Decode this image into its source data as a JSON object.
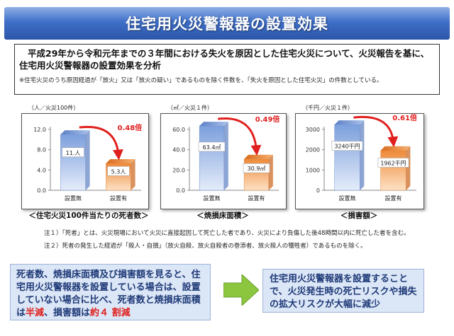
{
  "header": {
    "title": "住宅用火災警報器の設置効果"
  },
  "intro": {
    "text": "平成29年から令和元年までの３年間における失火を原因とした住宅火災について、火災報告を基に、住宅用火災警報器の設置効果を分析",
    "note": "※住宅火災のうち原因経過が「放火」又は「放火の疑い」であるものを除く件数を、「失火を原因とした住宅火災」の件数としている。"
  },
  "chart_data": [
    {
      "type": "bar",
      "unit_label": "（人／火災100件）",
      "categories": [
        "設置無",
        "設置有"
      ],
      "values": [
        11,
        5.3
      ],
      "data_labels": [
        "11.人",
        "5.3人"
      ],
      "ratio_label": "0.48倍",
      "yticks": [
        "0.0",
        "4.0",
        "8.0",
        "12.0"
      ],
      "ylim": [
        0,
        12
      ],
      "caption": "＜住宅火災100件当たりの死者数＞"
    },
    {
      "type": "bar",
      "unit_label": "（㎡／火災１件）",
      "categories": [
        "設置無",
        "設置有"
      ],
      "values": [
        63.4,
        30.9
      ],
      "data_labels": [
        "63.4㎡",
        "30.9㎡"
      ],
      "ratio_label": "0.49倍",
      "yticks": [
        "0.0",
        "20.0",
        "40.0",
        "60.0"
      ],
      "ylim": [
        0,
        60
      ],
      "caption": "＜焼損床面積＞"
    },
    {
      "type": "bar",
      "unit_label": "（千円／火災１件）",
      "categories": [
        "設置無",
        "設置有"
      ],
      "values": [
        3240,
        1962
      ],
      "data_labels": [
        "3240千円",
        "1962千円"
      ],
      "ratio_label": "0.61倍",
      "yticks": [
        "0",
        "1000",
        "2000",
        "3000"
      ],
      "ylim": [
        0,
        3000
      ],
      "caption": "＜損害額＞"
    }
  ],
  "notes": [
    "注１）「死者」とは、火災現場において火災に直接起因して死亡した者であり、火災により負傷した後48時間以内に死亡した者を含む。",
    "注２）死者の発生した経過が「殺人・自損」（放火自殺、放火自殺者の巻添者、放火殺人の犠牲者）であるものを除く。"
  ],
  "summary": {
    "part1": "死者数、焼損床面積及び損害額を見ると、住宅用火災警報器を設置している場合は、設置していない場合に比べ、死者数と焼損床面積は",
    "hl1": "半減",
    "part2": "、損害額は",
    "hl2": "約４ 割減"
  },
  "result": {
    "text": "住宅用火災警報器を設置することで、火災発生時の死亡リスクや損失の拡大リスクが大幅に減少"
  },
  "colors": {
    "banner": "#3f6fc8",
    "bar_without": "#8eaee3",
    "bar_with": "#f4a15a",
    "ratio": "#e0201e",
    "arrow": "#8cc63f"
  }
}
